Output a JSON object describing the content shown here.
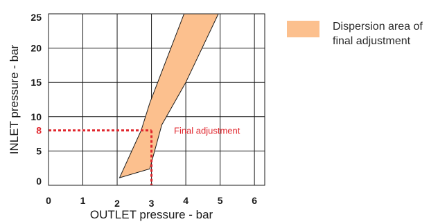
{
  "chart_data": {
    "type": "area",
    "xlabel": "OUTLET pressure - bar",
    "ylabel": "INLET pressure - bar",
    "xlim": [
      0,
      6.3
    ],
    "ylim": [
      0,
      25
    ],
    "x_ticks": [
      "0",
      "1",
      "2",
      "3",
      "4",
      "5",
      "6"
    ],
    "y_ticks": [
      "0",
      "5",
      "8",
      "10",
      "15",
      "20",
      "25"
    ],
    "grid": true,
    "legend_position": "top-right",
    "series": [
      {
        "name": "Dispersion area of final adjustment",
        "color": "#fcc08e",
        "points": [
          [
            2.07,
            1.1
          ],
          [
            2.95,
            2.4
          ],
          [
            3.3,
            8.8
          ],
          [
            4,
            15
          ],
          [
            4.95,
            25
          ],
          [
            3.95,
            25
          ],
          [
            2.95,
            12
          ],
          [
            2.7,
            8
          ],
          [
            2.07,
            1.1
          ]
        ]
      }
    ],
    "reference": {
      "label": "Final adjustment",
      "color": "#e0262d",
      "x": 3,
      "y": 8
    }
  }
}
